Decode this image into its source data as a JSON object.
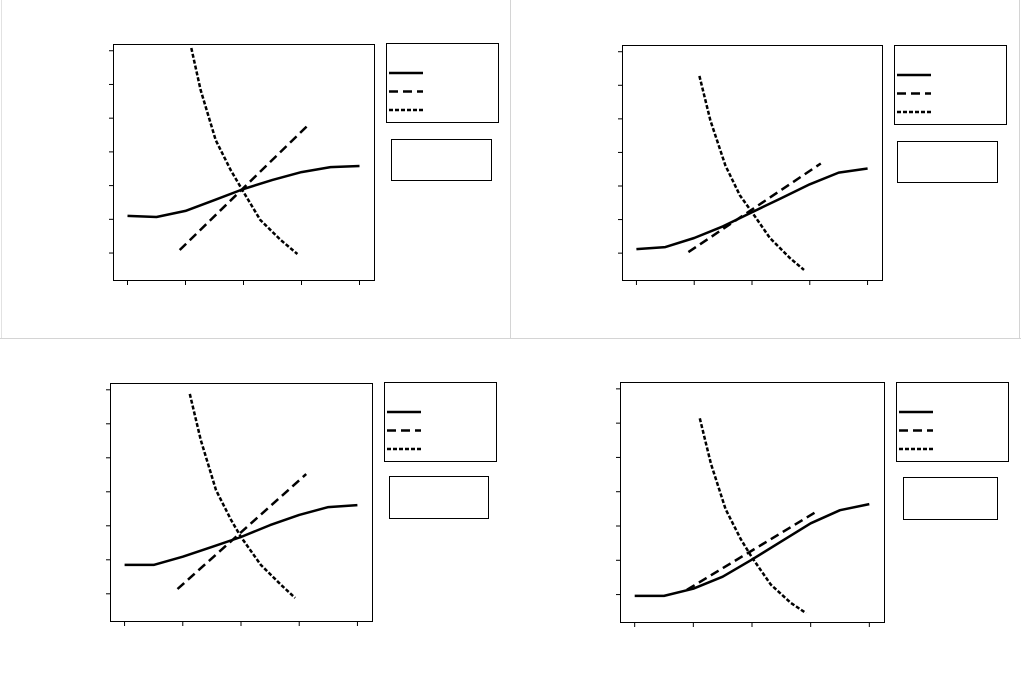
{
  "chart_data": [
    {
      "type": "line",
      "xlim": [
        0.75,
        5.25
      ],
      "xticks": [
        1,
        2,
        3,
        4,
        5
      ],
      "ylim": [
        0.2,
        7.2
      ],
      "yticks": [
        1,
        2,
        3,
        4,
        5,
        6,
        7
      ],
      "series": [
        {
          "color": "#000000",
          "dash": "solid",
          "x": [
            1,
            1.5,
            2,
            2.5,
            3,
            3.5,
            4,
            4.5,
            5
          ],
          "values": [
            2.1,
            2.07,
            2.25,
            2.57,
            2.9,
            3.17,
            3.4,
            3.55,
            3.58
          ]
        },
        {
          "color": "#000000",
          "dash": "dashed",
          "x": [
            1.9,
            4.1
          ],
          "values": [
            1.09,
            4.77
          ]
        },
        {
          "color": "#000000",
          "dash": "dotted",
          "x": [
            2.1,
            2.26,
            2.52,
            2.78,
            3.0,
            3.29,
            3.64,
            3.93
          ],
          "values": [
            7.08,
            5.84,
            4.35,
            3.46,
            2.81,
            1.98,
            1.39,
            0.97
          ]
        }
      ]
    },
    {
      "type": "line",
      "xlim": [
        0.75,
        5.25
      ],
      "xticks": [
        1,
        2,
        3,
        4,
        5
      ],
      "ylim": [
        0.2,
        7.2
      ],
      "yticks": [
        1,
        2,
        3,
        4,
        5,
        6,
        7
      ],
      "series": [
        {
          "color": "#000000",
          "dash": "solid",
          "x": [
            1,
            1.5,
            2,
            2.5,
            3,
            3.5,
            4,
            4.5,
            5
          ],
          "values": [
            1.12,
            1.18,
            1.45,
            1.8,
            2.22,
            2.63,
            3.05,
            3.4,
            3.52
          ]
        },
        {
          "color": "#000000",
          "dash": "dashed",
          "x": [
            1.9,
            4.19
          ],
          "values": [
            1.03,
            3.67
          ]
        },
        {
          "color": "#000000",
          "dash": "dotted",
          "x": [
            2.09,
            2.28,
            2.54,
            2.79,
            3.0,
            3.31,
            3.66,
            3.9
          ],
          "values": [
            6.28,
            4.95,
            3.61,
            2.72,
            2.22,
            1.45,
            0.85,
            0.5
          ]
        }
      ]
    },
    {
      "type": "line",
      "xlim": [
        0.75,
        5.25
      ],
      "xticks": [
        1,
        2,
        3,
        4,
        5
      ],
      "ylim": [
        0.2,
        7.2
      ],
      "yticks": [
        1,
        2,
        3,
        4,
        5,
        6,
        7
      ],
      "series": [
        {
          "color": "#000000",
          "dash": "solid",
          "x": [
            1,
            1.5,
            2,
            2.5,
            3,
            3.5,
            4,
            4.5,
            5
          ],
          "values": [
            1.85,
            1.85,
            2.09,
            2.38,
            2.67,
            3.02,
            3.32,
            3.55,
            3.61
          ]
        },
        {
          "color": "#000000",
          "dash": "dashed",
          "x": [
            1.91,
            4.12
          ],
          "values": [
            1.14,
            4.52
          ]
        },
        {
          "color": "#000000",
          "dash": "dotted",
          "x": [
            2.12,
            2.31,
            2.57,
            2.83,
            3.0,
            3.34,
            3.69,
            3.93
          ],
          "values": [
            6.88,
            5.52,
            4.05,
            3.17,
            2.67,
            1.85,
            1.26,
            0.88
          ]
        }
      ]
    },
    {
      "type": "line",
      "xlim": [
        0.75,
        5.25
      ],
      "xticks": [
        1,
        2,
        3,
        4,
        5
      ],
      "ylim": [
        0.2,
        7.2
      ],
      "yticks": [
        1,
        2,
        3,
        4,
        5,
        6,
        7
      ],
      "series": [
        {
          "color": "#000000",
          "dash": "solid",
          "x": [
            1,
            1.5,
            2,
            2.5,
            3,
            3.5,
            4,
            4.5,
            5
          ],
          "values": [
            0.96,
            0.96,
            1.17,
            1.52,
            2.02,
            2.55,
            3.08,
            3.46,
            3.64
          ]
        },
        {
          "color": "#000000",
          "dash": "dashed",
          "x": [
            1.89,
            4.12
          ],
          "values": [
            1.14,
            3.44
          ]
        },
        {
          "color": "#000000",
          "dash": "dotted",
          "x": [
            2.11,
            2.3,
            2.55,
            2.81,
            3.0,
            3.32,
            3.66,
            3.92
          ],
          "values": [
            6.14,
            4.82,
            3.49,
            2.61,
            2.08,
            1.29,
            0.76,
            0.46
          ]
        }
      ]
    }
  ]
}
